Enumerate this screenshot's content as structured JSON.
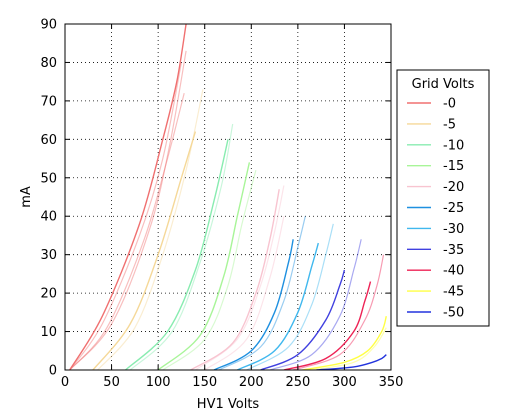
{
  "chart_data": {
    "type": "line",
    "title": "",
    "xlabel": "HV1 Volts",
    "ylabel": "mA",
    "xlim": [
      0,
      350
    ],
    "ylim": [
      0,
      90
    ],
    "xticks": [
      0,
      50,
      100,
      150,
      200,
      250,
      300,
      350
    ],
    "yticks": [
      0,
      10,
      20,
      30,
      40,
      50,
      60,
      70,
      80,
      90
    ],
    "grid": true,
    "grid_style": "dotted",
    "legend_title": "Grid Volts",
    "legend_position": "right-outside",
    "series": [
      {
        "name": "-0",
        "color": "#f07070",
        "x": [
          5,
          40,
          80,
          105,
          120,
          130
        ],
        "y": [
          0,
          14,
          38,
          60,
          75,
          90
        ],
        "extra": [
          {
            "x": [
              5,
              40,
              80,
              105,
              125
            ],
            "y": [
              0,
              12,
              35,
              55,
              80
            ]
          },
          {
            "x": [
              5,
              45,
              85,
              110,
              128
            ],
            "y": [
              0,
              11,
              34,
              55,
              72
            ]
          },
          {
            "x": [
              5,
              50,
              90,
              112,
              130
            ],
            "y": [
              0,
              12,
              36,
              58,
              83
            ]
          }
        ]
      },
      {
        "name": "-5",
        "color": "#f5d898",
        "x": [
          30,
          70,
          100,
          125,
          140
        ],
        "y": [
          0,
          12,
          30,
          50,
          62
        ],
        "extra": [
          {
            "x": [
              35,
              75,
              105,
              130,
              148
            ],
            "y": [
              0,
              11,
              30,
              52,
              73
            ]
          }
        ]
      },
      {
        "name": "-10",
        "color": "#88ecb0",
        "x": [
          65,
          110,
          140,
          160,
          175
        ],
        "y": [
          0,
          10,
          26,
          44,
          60
        ],
        "extra": [
          {
            "x": [
              70,
              115,
              145,
              168,
              180
            ],
            "y": [
              0,
              10,
              28,
              48,
              64
            ]
          }
        ]
      },
      {
        "name": "-15",
        "color": "#a8f598",
        "x": [
          100,
          145,
          170,
          185,
          198
        ],
        "y": [
          0,
          9,
          24,
          40,
          54
        ],
        "extra": [
          {
            "x": [
              105,
              150,
              175,
              190,
              205
            ],
            "y": [
              0,
              8,
              22,
              38,
              52
            ]
          }
        ]
      },
      {
        "name": "-20",
        "color": "#f8c4d0",
        "x": [
          135,
          180,
          205,
          220,
          230
        ],
        "y": [
          0,
          7,
          20,
          34,
          47
        ],
        "extra": [
          {
            "x": [
              140,
              185,
              210,
              225,
              235
            ],
            "y": [
              0,
              8,
              22,
              36,
              48
            ]
          },
          {
            "x": [
              150,
              195,
              220,
              235
            ],
            "y": [
              0,
              8,
              24,
              40
            ]
          }
        ]
      },
      {
        "name": "-25",
        "color": "#1e90e0",
        "x": [
          160,
          200,
          225,
          240,
          245
        ],
        "y": [
          0,
          5,
          15,
          28,
          34
        ],
        "extra": [
          {
            "x": [
              165,
              210,
              235,
              250,
              258
            ],
            "y": [
              0,
              6,
              18,
              32,
              40
            ]
          }
        ]
      },
      {
        "name": "-30",
        "color": "#40b8ee",
        "x": [
          185,
          225,
          250,
          265,
          272
        ],
        "y": [
          0,
          5,
          15,
          27,
          33
        ],
        "extra": [
          {
            "x": [
              195,
              240,
              265,
              280,
              288
            ],
            "y": [
              0,
              6,
              17,
              30,
              38
            ]
          }
        ]
      },
      {
        "name": "-35",
        "color": "#4040e0",
        "x": [
          210,
          250,
          280,
          295,
          300
        ],
        "y": [
          0,
          4,
          13,
          22,
          26
        ],
        "extra": [
          {
            "x": [
              220,
              265,
              295,
              310,
              318
            ],
            "y": [
              0,
              4,
              14,
              26,
              34
            ]
          }
        ]
      },
      {
        "name": "-40",
        "color": "#ee2255",
        "x": [
          235,
          280,
          310,
          322,
          328
        ],
        "y": [
          0,
          3,
          10,
          18,
          23
        ],
        "extra": [
          {
            "x": [
              245,
              295,
              322,
              335,
              342
            ],
            "y": [
              0,
              4,
              13,
              22,
              30
            ]
          }
        ]
      },
      {
        "name": "-45",
        "color": "#ffff44",
        "x": [
          255,
          300,
          325,
          340,
          345
        ],
        "y": [
          0,
          2,
          5,
          10,
          14
        ],
        "extra": [
          {
            "x": [
              265,
              310,
              332,
              345
            ],
            "y": [
              0,
              2,
              6,
              11
            ]
          }
        ]
      },
      {
        "name": "-50",
        "color": "#2233dd",
        "x": [
          270,
          310,
          330,
          340,
          345
        ],
        "y": [
          0,
          0.8,
          2,
          3,
          4
        ],
        "extra": []
      }
    ]
  }
}
